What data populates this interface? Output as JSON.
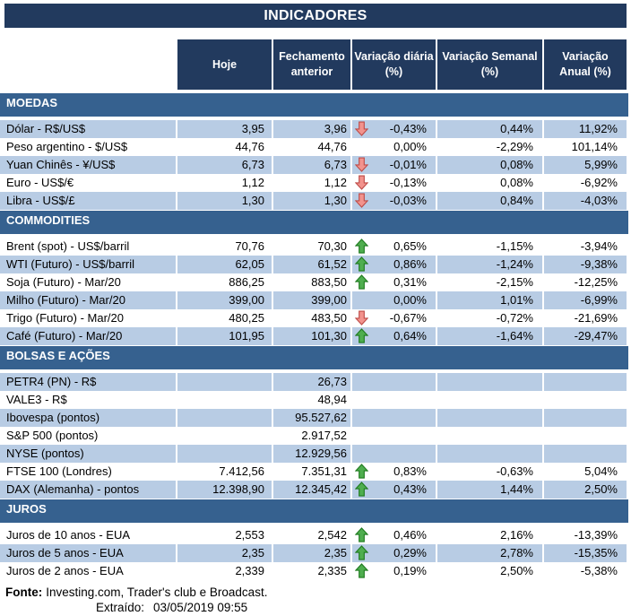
{
  "colors": {
    "navy": "#223A5E",
    "section_blue": "#36618F",
    "shaded_row": "#B8CCE4",
    "up_arrow_fill": "#4FAE4F",
    "up_arrow_stroke": "#1E7A1E",
    "down_arrow_fill": "#F2938D",
    "down_arrow_stroke": "#BE4B47"
  },
  "footer": {
    "fonte_label": "Fonte:",
    "fonte_text": "Investing.com, Trader's club e Broadcast.",
    "extraido_label": "Extraído:",
    "extraido_value": "03/05/2019 09:55"
  },
  "chart_data": {
    "type": "table",
    "title": "INDICADORES",
    "columns": [
      "Hoje",
      "Fechamento\nanterior",
      "Variação diária\n(%)",
      "Variação Semanal\n(%)",
      "Variação\nAnual (%)"
    ],
    "sections": [
      {
        "name": "MOEDAS",
        "rows": [
          {
            "label": "Dólar - R$/US$",
            "hoje": "3,95",
            "fechamento": "3,96",
            "arrow": "down",
            "diaria": "-0,43%",
            "semanal": "0,44%",
            "anual": "11,92%"
          },
          {
            "label": "Peso argentino - $/US$",
            "hoje": "44,76",
            "fechamento": "44,76",
            "arrow": "none",
            "diaria": "0,00%",
            "semanal": "-2,29%",
            "anual": "101,14%"
          },
          {
            "label": "Yuan Chinês - ¥/US$",
            "hoje": "6,73",
            "fechamento": "6,73",
            "arrow": "down",
            "diaria": "-0,01%",
            "semanal": "0,08%",
            "anual": "5,99%"
          },
          {
            "label": "Euro - US$/€",
            "hoje": "1,12",
            "fechamento": "1,12",
            "arrow": "down",
            "diaria": "-0,13%",
            "semanal": "0,08%",
            "anual": "-6,92%"
          },
          {
            "label": "Libra - US$/£",
            "hoje": "1,30",
            "fechamento": "1,30",
            "arrow": "down",
            "diaria": "-0,03%",
            "semanal": "0,84%",
            "anual": "-4,03%"
          }
        ]
      },
      {
        "name": "COMMODITIES",
        "rows": [
          {
            "label": "Brent (spot) - US$/barril",
            "hoje": "70,76",
            "fechamento": "70,30",
            "arrow": "up",
            "diaria": "0,65%",
            "semanal": "-1,15%",
            "anual": "-3,94%"
          },
          {
            "label": "WTI (Futuro) - US$/barril",
            "hoje": "62,05",
            "fechamento": "61,52",
            "arrow": "up",
            "diaria": "0,86%",
            "semanal": "-1,24%",
            "anual": "-9,38%"
          },
          {
            "label": "Soja (Futuro) - Mar/20",
            "hoje": "886,25",
            "fechamento": "883,50",
            "arrow": "up",
            "diaria": "0,31%",
            "semanal": "-2,15%",
            "anual": "-12,25%"
          },
          {
            "label": "Milho (Futuro) - Mar/20",
            "hoje": "399,00",
            "fechamento": "399,00",
            "arrow": "none",
            "diaria": "0,00%",
            "semanal": "1,01%",
            "anual": "-6,99%"
          },
          {
            "label": "Trigo (Futuro) - Mar/20",
            "hoje": "480,25",
            "fechamento": "483,50",
            "arrow": "down",
            "diaria": "-0,67%",
            "semanal": "-0,72%",
            "anual": "-21,69%"
          },
          {
            "label": "Café (Futuro) - Mar/20",
            "hoje": "101,95",
            "fechamento": "101,30",
            "arrow": "up",
            "diaria": "0,64%",
            "semanal": "-1,64%",
            "anual": "-29,47%"
          }
        ]
      },
      {
        "name": "BOLSAS E AÇÕES",
        "rows": [
          {
            "label": "PETR4 (PN) - R$",
            "hoje": "",
            "fechamento": "26,73",
            "arrow": "none",
            "diaria": "",
            "semanal": "",
            "anual": ""
          },
          {
            "label": "VALE3 - R$",
            "hoje": "",
            "fechamento": "48,94",
            "arrow": "none",
            "diaria": "",
            "semanal": "",
            "anual": ""
          },
          {
            "label": "Ibovespa (pontos)",
            "hoje": "",
            "fechamento": "95.527,62",
            "arrow": "none",
            "diaria": "",
            "semanal": "",
            "anual": ""
          },
          {
            "label": "S&P 500 (pontos)",
            "hoje": "",
            "fechamento": "2.917,52",
            "arrow": "none",
            "diaria": "",
            "semanal": "",
            "anual": ""
          },
          {
            "label": "NYSE (pontos)",
            "hoje": "",
            "fechamento": "12.929,56",
            "arrow": "none",
            "diaria": "",
            "semanal": "",
            "anual": ""
          },
          {
            "label": "FTSE 100 (Londres)",
            "hoje": "7.412,56",
            "fechamento": "7.351,31",
            "arrow": "up",
            "diaria": "0,83%",
            "semanal": "-0,63%",
            "anual": "5,04%"
          },
          {
            "label": "DAX (Alemanha) - pontos",
            "hoje": "12.398,90",
            "fechamento": "12.345,42",
            "arrow": "up",
            "diaria": "0,43%",
            "semanal": "1,44%",
            "anual": "2,50%"
          }
        ]
      },
      {
        "name": "JUROS",
        "rows": [
          {
            "label": "Juros de 10 anos - EUA",
            "hoje": "2,553",
            "fechamento": "2,542",
            "arrow": "up",
            "diaria": "0,46%",
            "semanal": "2,16%",
            "anual": "-13,39%"
          },
          {
            "label": "Juros de 5 anos - EUA",
            "hoje": "2,35",
            "fechamento": "2,35",
            "arrow": "up",
            "diaria": "0,29%",
            "semanal": "2,78%",
            "anual": "-15,35%"
          },
          {
            "label": "Juros de 2 anos - EUA",
            "hoje": "2,339",
            "fechamento": "2,335",
            "arrow": "up",
            "diaria": "0,19%",
            "semanal": "2,50%",
            "anual": "-5,38%"
          }
        ]
      }
    ]
  }
}
